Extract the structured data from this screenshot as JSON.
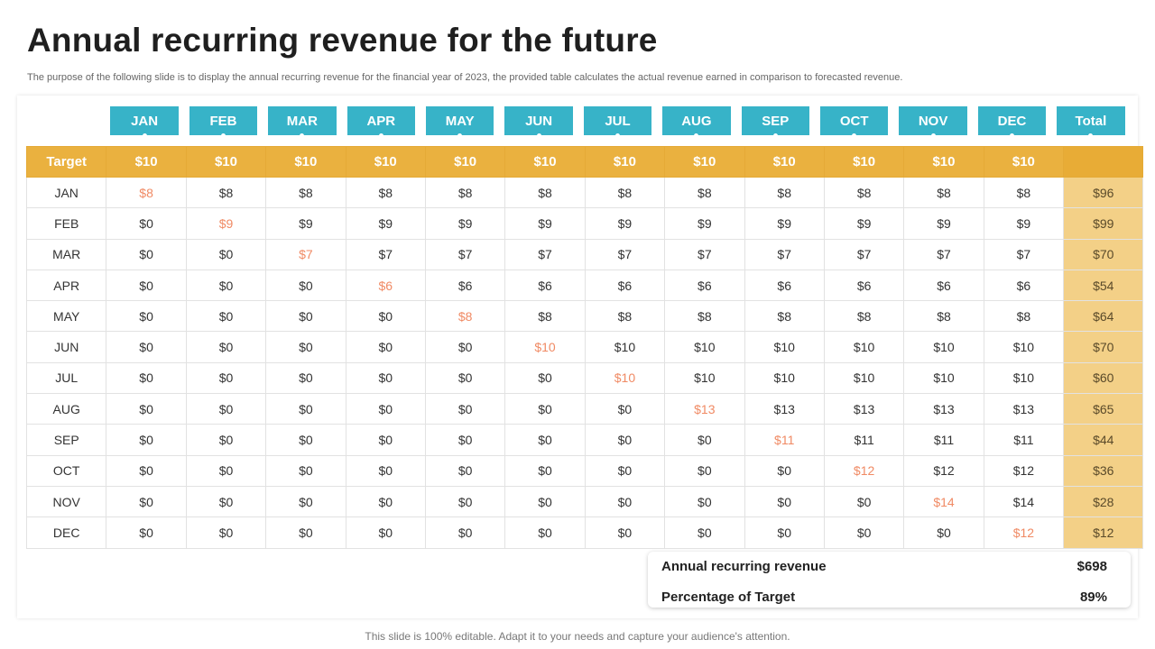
{
  "title": "Annual recurring revenue for the future",
  "subtitle": "The purpose of the following slide is to display the annual recurring revenue for the financial year of 2023, the provided table calculates the actual revenue earned in comparison to forecasted revenue.",
  "month_headers": [
    "JAN",
    "FEB",
    "MAR",
    "APR",
    "MAY",
    "JUN",
    "JUL",
    "AUG",
    "SEP",
    "OCT",
    "NOV",
    "DEC",
    "Total"
  ],
  "target_row": {
    "label": "Target",
    "values": [
      "$10",
      "$10",
      "$10",
      "$10",
      "$10",
      "$10",
      "$10",
      "$10",
      "$10",
      "$10",
      "$10",
      "$10",
      ""
    ]
  },
  "rows": [
    {
      "label": "JAN",
      "values": [
        "$8",
        "$8",
        "$8",
        "$8",
        "$8",
        "$8",
        "$8",
        "$8",
        "$8",
        "$8",
        "$8",
        "$8"
      ],
      "total": "$96"
    },
    {
      "label": "FEB",
      "values": [
        "$0",
        "$9",
        "$9",
        "$9",
        "$9",
        "$9",
        "$9",
        "$9",
        "$9",
        "$9",
        "$9",
        "$9"
      ],
      "total": "$99"
    },
    {
      "label": "MAR",
      "values": [
        "$0",
        "$0",
        "$7",
        "$7",
        "$7",
        "$7",
        "$7",
        "$7",
        "$7",
        "$7",
        "$7",
        "$7"
      ],
      "total": "$70"
    },
    {
      "label": "APR",
      "values": [
        "$0",
        "$0",
        "$0",
        "$6",
        "$6",
        "$6",
        "$6",
        "$6",
        "$6",
        "$6",
        "$6",
        "$6"
      ],
      "total": "$54"
    },
    {
      "label": "MAY",
      "values": [
        "$0",
        "$0",
        "$0",
        "$0",
        "$8",
        "$8",
        "$8",
        "$8",
        "$8",
        "$8",
        "$8",
        "$8"
      ],
      "total": "$64"
    },
    {
      "label": "JUN",
      "values": [
        "$0",
        "$0",
        "$0",
        "$0",
        "$0",
        "$10",
        "$10",
        "$10",
        "$10",
        "$10",
        "$10",
        "$10"
      ],
      "total": "$70"
    },
    {
      "label": "JUL",
      "values": [
        "$0",
        "$0",
        "$0",
        "$0",
        "$0",
        "$0",
        "$10",
        "$10",
        "$10",
        "$10",
        "$10",
        "$10"
      ],
      "total": "$60"
    },
    {
      "label": "AUG",
      "values": [
        "$0",
        "$0",
        "$0",
        "$0",
        "$0",
        "$0",
        "$0",
        "$13",
        "$13",
        "$13",
        "$13",
        "$13"
      ],
      "total": "$65"
    },
    {
      "label": "SEP",
      "values": [
        "$0",
        "$0",
        "$0",
        "$0",
        "$0",
        "$0",
        "$0",
        "$0",
        "$11",
        "$11",
        "$11",
        "$11"
      ],
      "total": "$44"
    },
    {
      "label": "OCT",
      "values": [
        "$0",
        "$0",
        "$0",
        "$0",
        "$0",
        "$0",
        "$0",
        "$0",
        "$0",
        "$12",
        "$12",
        "$12"
      ],
      "total": "$36"
    },
    {
      "label": "NOV",
      "values": [
        "$0",
        "$0",
        "$0",
        "$0",
        "$0",
        "$0",
        "$0",
        "$0",
        "$0",
        "$0",
        "$14",
        "$14"
      ],
      "total": "$28"
    },
    {
      "label": "DEC",
      "values": [
        "$0",
        "$0",
        "$0",
        "$0",
        "$0",
        "$0",
        "$0",
        "$0",
        "$0",
        "$0",
        "$0",
        "$12"
      ],
      "total": "$12"
    }
  ],
  "summary": {
    "arr_label": "Annual recurring revenue",
    "arr_value": "$698",
    "pct_label": "Percentage of Target",
    "pct_value": "89%"
  },
  "footer": "This slide is 100% editable. Adapt it to your needs and capture your audience's attention.",
  "colors": {
    "header_teal": "#37b3c8",
    "target_gold": "#eab13f",
    "total_col": "#f3d087",
    "highlight": "#f08a64"
  }
}
